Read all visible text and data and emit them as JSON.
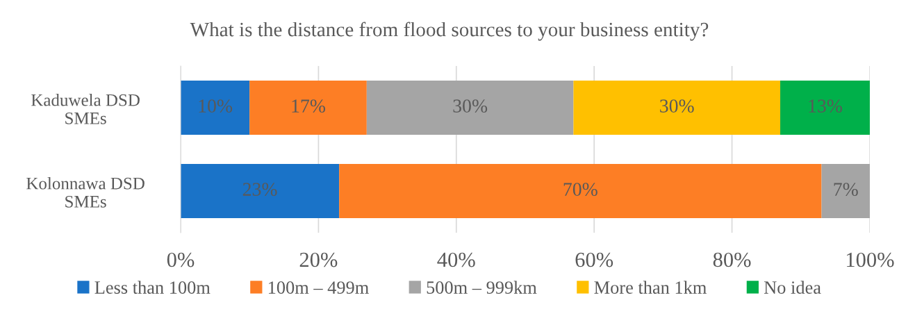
{
  "chart_data": {
    "type": "bar",
    "orientation": "horizontal",
    "stacked": true,
    "title": "What is the distance from flood sources to your business entity?",
    "categories": [
      "Kaduwela DSD\nSMEs",
      "Kolonnawa DSD\nSMEs"
    ],
    "series": [
      {
        "name": "Less than 100m",
        "color": "#1a73c8",
        "values": [
          10,
          23
        ],
        "value_labels": [
          "10%",
          "23%"
        ]
      },
      {
        "name": "100m – 499m",
        "color": "#fd7e25",
        "values": [
          17,
          70
        ],
        "value_labels": [
          "17%",
          "70%"
        ]
      },
      {
        "name": "500m – 999km",
        "color": "#a5a5a5",
        "values": [
          30,
          7
        ],
        "value_labels": [
          "30%",
          "7%"
        ]
      },
      {
        "name": "More than 1km",
        "color": "#ffc000",
        "values": [
          30,
          null
        ],
        "value_labels": [
          "30%",
          null
        ]
      },
      {
        "name": "No idea",
        "color": "#00b04a",
        "values": [
          13,
          null
        ],
        "value_labels": [
          "13%",
          null
        ]
      }
    ],
    "xlim": [
      0,
      100
    ],
    "xticks": [
      {
        "value": 0,
        "label": "0%"
      },
      {
        "value": 20,
        "label": "20%"
      },
      {
        "value": 40,
        "label": "40%"
      },
      {
        "value": 60,
        "label": "60%"
      },
      {
        "value": 80,
        "label": "80%"
      },
      {
        "value": 100,
        "label": "100%"
      }
    ],
    "grid": "x",
    "legend": "bottom"
  }
}
